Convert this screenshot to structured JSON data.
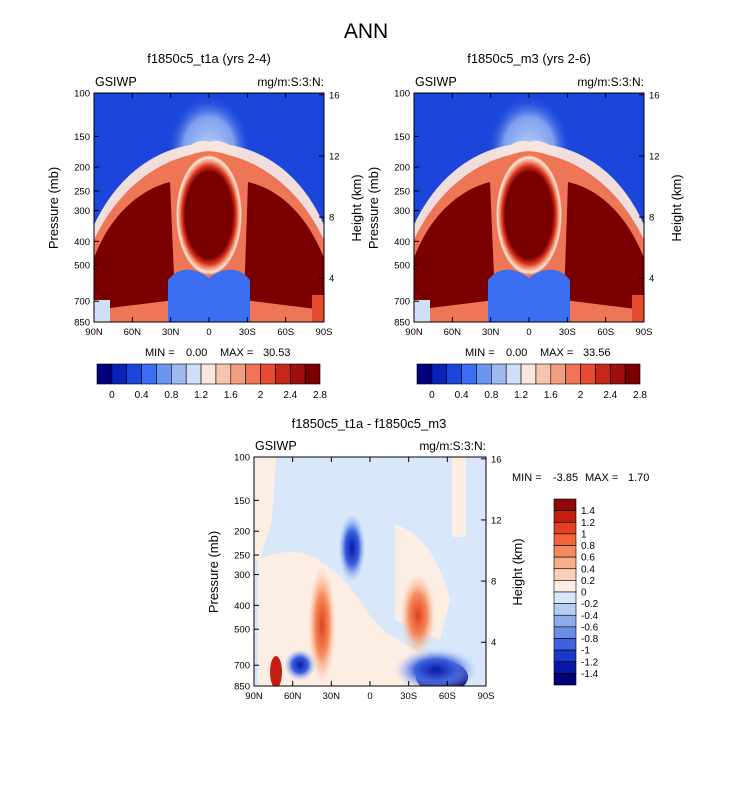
{
  "main_title": "ANN",
  "chart_data": [
    {
      "type": "heatmap",
      "title": "f1850c5_t1a (yrs 2-4)",
      "left_label": "GSIWP",
      "right_label": "mg/m:S:3:N:",
      "ylabel": "Pressure (mb)",
      "y2label": "Height (km)",
      "xlabel": "",
      "x_ticks": [
        "90N",
        "60N",
        "30N",
        "0",
        "30S",
        "60S",
        "90S"
      ],
      "y_ticks": [
        "100",
        "150",
        "200",
        "250",
        "300",
        "400",
        "500",
        "700",
        "850"
      ],
      "y2_ticks": [
        "16",
        "12",
        "8",
        "4"
      ],
      "stats": {
        "min_label": "MIN =",
        "min": "0.00",
        "max_label": "MAX =",
        "max": "30.53"
      },
      "colorbar": {
        "levels": [
          "0",
          "0.4",
          "0.8",
          "1.2",
          "1.6",
          "2",
          "2.4",
          "2.8"
        ],
        "colors": [
          "#03007f",
          "#0a22b8",
          "#1c46db",
          "#3b6ef0",
          "#6a96f2",
          "#9dbaf3",
          "#cfdff7",
          "#fbe7dc",
          "#f6c5ae",
          "#f29d7f",
          "#ee7555",
          "#e64c30",
          "#c8261b",
          "#9c0f0d",
          "#7a0000"
        ]
      },
      "xlim": [
        -90,
        90
      ],
      "ylim": [
        850,
        100
      ]
    },
    {
      "type": "heatmap",
      "title": "f1850c5_m3 (yrs 2-6)",
      "left_label": "GSIWP",
      "right_label": "mg/m:S:3:N:",
      "ylabel": "Pressure (mb)",
      "y2label": "Height (km)",
      "xlabel": "",
      "x_ticks": [
        "90N",
        "60N",
        "30N",
        "0",
        "30S",
        "60S",
        "90S"
      ],
      "y_ticks": [
        "100",
        "150",
        "200",
        "250",
        "300",
        "400",
        "500",
        "700",
        "850"
      ],
      "y2_ticks": [
        "16",
        "12",
        "8",
        "4"
      ],
      "stats": {
        "min_label": "MIN =",
        "min": "0.00",
        "max_label": "MAX =",
        "max": "33.56"
      },
      "colorbar": {
        "levels": [
          "0",
          "0.4",
          "0.8",
          "1.2",
          "1.6",
          "2",
          "2.4",
          "2.8"
        ],
        "colors": [
          "#03007f",
          "#0a22b8",
          "#1c46db",
          "#3b6ef0",
          "#6a96f2",
          "#9dbaf3",
          "#cfdff7",
          "#fbe7dc",
          "#f6c5ae",
          "#f29d7f",
          "#ee7555",
          "#e64c30",
          "#c8261b",
          "#9c0f0d",
          "#7a0000"
        ]
      },
      "xlim": [
        -90,
        90
      ],
      "ylim": [
        850,
        100
      ]
    },
    {
      "type": "heatmap",
      "title": "f1850c5_t1a - f1850c5_m3",
      "left_label": "GSIWP",
      "right_label": "mg/m:S:3:N:",
      "ylabel": "Pressure (mb)",
      "y2label": "Height (km)",
      "xlabel": "",
      "x_ticks": [
        "90N",
        "60N",
        "30N",
        "0",
        "30S",
        "60S",
        "90S"
      ],
      "y_ticks": [
        "100",
        "150",
        "200",
        "250",
        "300",
        "400",
        "500",
        "700",
        "850"
      ],
      "y2_ticks": [
        "16",
        "12",
        "8",
        "4"
      ],
      "stats": {
        "min_label": "MIN =",
        "min": "-3.85",
        "max_label": "MAX =",
        "max": "1.70"
      },
      "colorbar": {
        "levels": [
          "1.4",
          "1.2",
          "1",
          "0.8",
          "0.6",
          "0.4",
          "0.2",
          "0",
          "-0.2",
          "-0.4",
          "-0.6",
          "-0.8",
          "-1",
          "-1.2",
          "-1.4"
        ],
        "colors": [
          "#8c0a0a",
          "#c41e14",
          "#e2401f",
          "#f0643a",
          "#f58a5c",
          "#f8ae86",
          "#fbd0b8",
          "#fdeee4",
          "#d8e8fa",
          "#b4cdf3",
          "#8cacee",
          "#6a8ee8",
          "#3f62e0",
          "#1a38c8",
          "#0818a4",
          "#00007a"
        ]
      },
      "xlim": [
        -90,
        90
      ],
      "ylim": [
        850,
        100
      ]
    }
  ]
}
